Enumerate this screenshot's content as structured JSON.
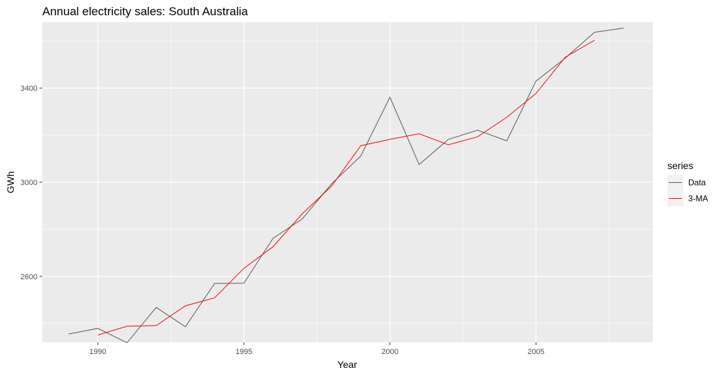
{
  "chart_data": {
    "type": "line",
    "title": "Annual electricity sales: South Australia",
    "xlabel": "Year",
    "ylabel": "GWh",
    "xlim": [
      1988.1,
      2009.0
    ],
    "ylim": [
      2320,
      3680
    ],
    "x_ticks": [
      1990,
      1995,
      2000,
      2005
    ],
    "y_ticks": [
      2600,
      3000,
      3400
    ],
    "grid": true,
    "legend": {
      "title": "series",
      "placement": "right"
    },
    "series": [
      {
        "name": "Data",
        "color": "#595959",
        "x": [
          1989,
          1990,
          1991,
          1992,
          1993,
          1994,
          1995,
          1996,
          1997,
          1998,
          1999,
          2000,
          2001,
          2002,
          2003,
          2004,
          2005,
          2006,
          2007,
          2008
        ],
        "y": [
          2355,
          2379,
          2318,
          2468,
          2386,
          2570,
          2571,
          2762,
          2844,
          2993,
          3111,
          3361,
          3075,
          3182,
          3221,
          3176,
          3430,
          3527,
          3637,
          3655
        ]
      },
      {
        "name": "3-MA",
        "color": "#ff0000",
        "x": [
          1990,
          1991,
          1992,
          1993,
          1994,
          1995,
          1996,
          1997,
          1998,
          1999,
          2000,
          2001,
          2002,
          2003,
          2004,
          2005,
          2006,
          2007
        ],
        "y": [
          2351,
          2388,
          2391,
          2475,
          2509,
          2634,
          2726,
          2866,
          2983,
          3155,
          3182,
          3206,
          3159,
          3193,
          3276,
          3377,
          3531,
          3603
        ]
      }
    ]
  }
}
